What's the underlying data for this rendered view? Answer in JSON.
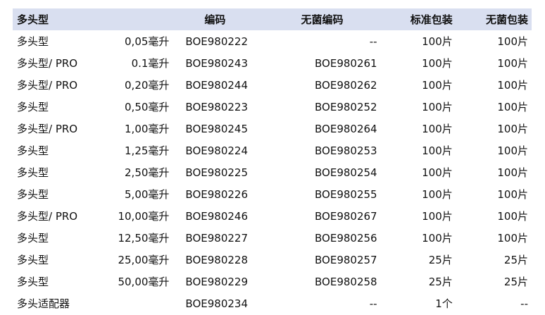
{
  "header": {
    "name": "多头型",
    "code": "编码",
    "sterile_code": "无菌编码",
    "standard_pack": "标准包装",
    "sterile_pack": "无菌包装"
  },
  "rows": [
    {
      "name": "多头型",
      "volume": "0,05毫升",
      "code": "BOE980222",
      "sterile_code": "--",
      "standard_pack": "100片",
      "sterile_pack": "100片"
    },
    {
      "name": "多头型/ PRO",
      "volume": "0.1毫升",
      "code": "BOE980243",
      "sterile_code": "BOE980261",
      "standard_pack": "100片",
      "sterile_pack": "100片"
    },
    {
      "name": "多头型/ PRO",
      "volume": "0,20毫升",
      "code": "BOE980244",
      "sterile_code": "BOE980262",
      "standard_pack": "100片",
      "sterile_pack": "100片"
    },
    {
      "name": "多头型",
      "volume": "0,50毫升",
      "code": "BOE980223",
      "sterile_code": "BOE980252",
      "standard_pack": "100片",
      "sterile_pack": "100片"
    },
    {
      "name": "多头型/ PRO",
      "volume": "1,00毫升",
      "code": "BOE980245",
      "sterile_code": "BOE980264",
      "standard_pack": "100片",
      "sterile_pack": "100片"
    },
    {
      "name": "多头型",
      "volume": "1,25毫升",
      "code": "BOE980224",
      "sterile_code": "BOE980253",
      "standard_pack": "100片",
      "sterile_pack": "100片"
    },
    {
      "name": "多头型",
      "volume": "2,50毫升",
      "code": "BOE980225",
      "sterile_code": "BOE980254",
      "standard_pack": "100片",
      "sterile_pack": "100片"
    },
    {
      "name": "多头型",
      "volume": "5,00毫升",
      "code": "BOE980226",
      "sterile_code": "BOE980255",
      "standard_pack": "100片",
      "sterile_pack": "100片"
    },
    {
      "name": "多头型/ PRO",
      "volume": "10,00毫升",
      "code": "BOE980246",
      "sterile_code": "BOE980267",
      "standard_pack": "100片",
      "sterile_pack": "100片"
    },
    {
      "name": "多头型",
      "volume": "12,50毫升",
      "code": "BOE980227",
      "sterile_code": "BOE980256",
      "standard_pack": "100片",
      "sterile_pack": "100片"
    },
    {
      "name": "多头型",
      "volume": "25,00毫升",
      "code": "BOE980228",
      "sterile_code": "BOE980257",
      "standard_pack": "25片",
      "sterile_pack": "25片"
    },
    {
      "name": "多头型",
      "volume": "50,00毫升",
      "code": "BOE980229",
      "sterile_code": "BOE980258",
      "standard_pack": "25片",
      "sterile_pack": "25片"
    },
    {
      "name": "多头适配器",
      "volume": "",
      "code": "BOE980234",
      "sterile_code": "--",
      "standard_pack": "1个",
      "sterile_pack": "--"
    }
  ]
}
